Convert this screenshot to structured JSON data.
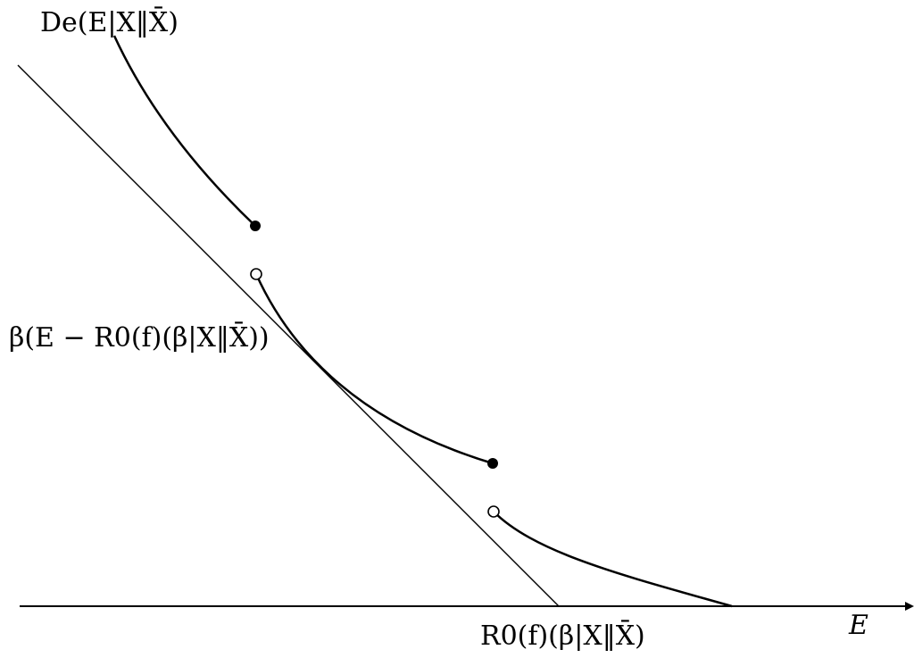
{
  "labels": {
    "curve_label": "De(E|X‖X̄)",
    "tangent_label": "β(E − R0(f)(β|X‖X̄))",
    "intercept_label": "R0(f)(β|X‖X̄)",
    "x_axis_label": "E"
  },
  "colors": {
    "ink": "#000000",
    "background": "#ffffff"
  }
}
